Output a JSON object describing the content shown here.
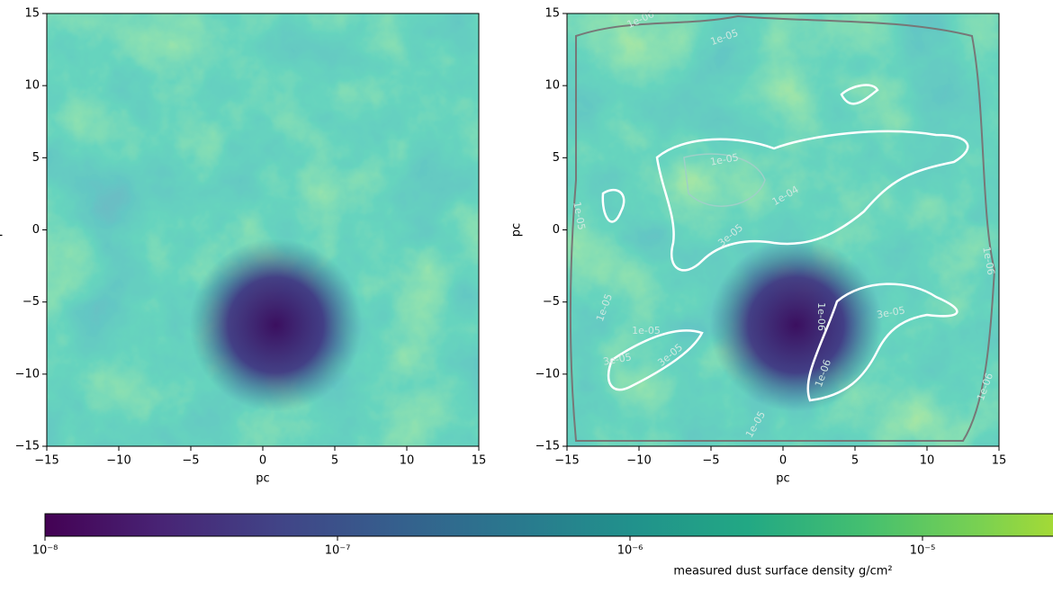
{
  "chart_data": [
    {
      "type": "heatmap",
      "xlabel": "pc",
      "ylabel": "pc",
      "xlim": [
        -15,
        15
      ],
      "ylim": [
        -15,
        15
      ],
      "xticks": [
        {
          "value": -15,
          "label": "−15"
        },
        {
          "value": -10,
          "label": "−10"
        },
        {
          "value": -5,
          "label": "−5"
        },
        0,
        5,
        10,
        15
      ],
      "yticks": [
        {
          "value": -15,
          "label": "−15"
        },
        {
          "value": -10,
          "label": "−10"
        },
        {
          "value": -5,
          "label": "−5"
        },
        0,
        5,
        10,
        15
      ]
    },
    {
      "type": "heatmap",
      "xlabel": "pc",
      "ylabel": "pc",
      "xlim": [
        -15,
        15
      ],
      "ylim": [
        -15,
        15
      ],
      "xticks": [
        {
          "value": -15,
          "label": "−15"
        },
        {
          "value": -10,
          "label": "−10"
        },
        {
          "value": -5,
          "label": "−5"
        },
        0,
        5,
        10,
        15
      ],
      "yticks": [
        {
          "value": -15,
          "label": "−15"
        },
        {
          "value": -10,
          "label": "−10"
        },
        {
          "value": -5,
          "label": "−5"
        },
        0,
        5,
        10,
        15
      ],
      "contour_labels": [
        "1e-06",
        "1e-05",
        "1e-05",
        "1e-04",
        "1e-05",
        "3e-05",
        "1e-05",
        "1e-05",
        "3e-05",
        "3e-05",
        "1e-06",
        "1e-06",
        "3e-05",
        "1e-05",
        "1e-06",
        "1e-06"
      ]
    }
  ],
  "colorbar": {
    "label": "measured dust surface density g/cm²",
    "log": true,
    "clim": [
      1e-08,
      0.0001
    ],
    "ticks": [
      {
        "value": 1e-08,
        "label": "10⁻⁸"
      },
      {
        "value": 1e-07,
        "label": "10⁻⁷"
      },
      {
        "value": 1e-06,
        "label": "10⁻⁶"
      },
      {
        "value": 1e-05,
        "label": "10⁻⁵"
      }
    ]
  }
}
